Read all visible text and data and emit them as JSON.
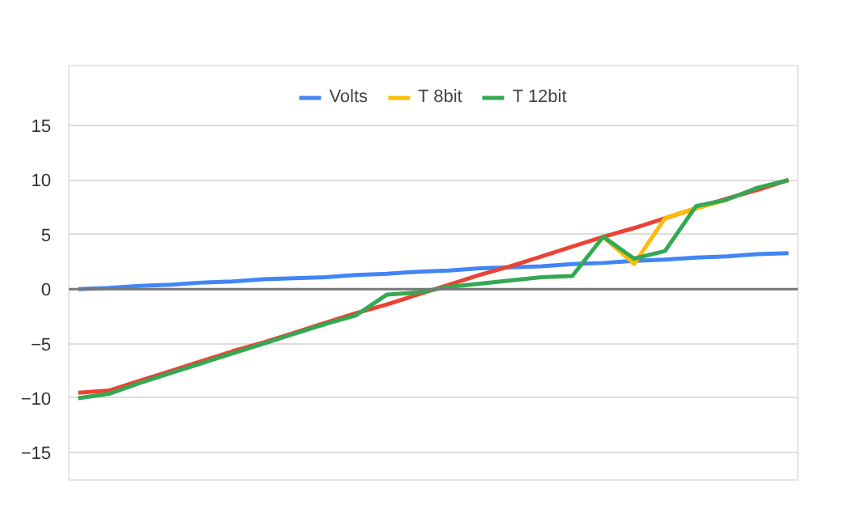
{
  "chart_data": {
    "type": "line",
    "categories": [
      null,
      null,
      null,
      null,
      null,
      null,
      null,
      null,
      null,
      null,
      null,
      null,
      null,
      null,
      null,
      null,
      null,
      null,
      null,
      null,
      null,
      null,
      null,
      null
    ],
    "ylim": [
      -17.5,
      20.5
    ],
    "yticks": [
      -15,
      -10,
      -5,
      0,
      5,
      10,
      15
    ],
    "grid": "y",
    "legend": "top",
    "tick_labels": "y",
    "line_style": "solid",
    "ref_lines": [
      {
        "axis": "y",
        "value": 0,
        "color": "#777777"
      }
    ],
    "series": [
      {
        "name": "Volts",
        "color": "#4285f4",
        "values": [
          0,
          0.1,
          0.3,
          0.4,
          0.6,
          0.7,
          0.9,
          1.0,
          1.1,
          1.3,
          1.4,
          1.6,
          1.7,
          1.9,
          2.0,
          2.1,
          2.3,
          2.4,
          2.6,
          2.7,
          2.9,
          3.0,
          3.2,
          3.3
        ]
      },
      {
        "color": "#ea4335",
        "values": [
          -9.5,
          -9.3,
          -8.4,
          -7.5,
          -6.6,
          -5.7,
          -4.9,
          -4.0,
          -3.1,
          -2.2,
          -1.4,
          -0.5,
          0.4,
          1.3,
          2.1,
          3.0,
          3.9,
          4.8,
          5.6,
          6.5,
          7.4,
          8.3,
          9.1,
          10
        ]
      },
      {
        "name": "T 8bit",
        "color": "#fbbc04",
        "values": [
          null,
          null,
          null,
          null,
          null,
          null,
          null,
          null,
          null,
          null,
          null,
          null,
          null,
          null,
          null,
          null,
          null,
          4.8,
          2.3,
          6.5,
          7.4,
          8.2,
          null,
          null
        ]
      },
      {
        "name": "T 12bit",
        "color": "#34a853",
        "values": [
          -10,
          -9.6,
          -8.6,
          -7.7,
          -6.8,
          -5.9,
          -5.0,
          -4.1,
          -3.2,
          -2.4,
          -0.5,
          -0.3,
          0.2,
          0.5,
          0.8,
          1.1,
          1.2,
          4.8,
          2.8,
          3.5,
          7.6,
          8.2,
          9.3,
          10
        ]
      }
    ]
  }
}
